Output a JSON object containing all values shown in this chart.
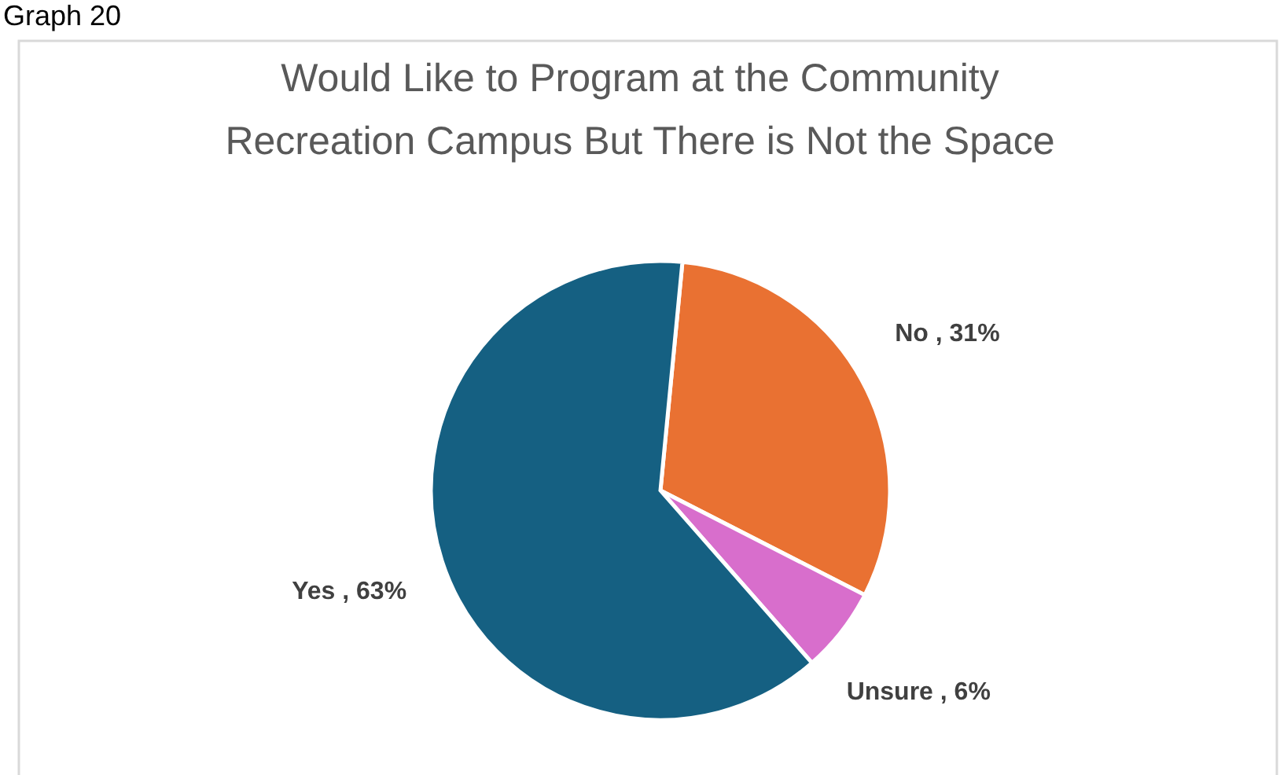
{
  "chart_data": {
    "type": "pie",
    "title": "Would Like to Program at the Community Recreation Campus But There is Not the Space",
    "categories": [
      "No",
      "Unsure",
      "Yes"
    ],
    "values": [
      31,
      6,
      63
    ],
    "colors": [
      "#e97132",
      "#d86ecc",
      "#156082"
    ],
    "value_labels": [
      "31%",
      "6%",
      "63%"
    ],
    "annotations": [
      "Graph 20"
    ]
  }
}
